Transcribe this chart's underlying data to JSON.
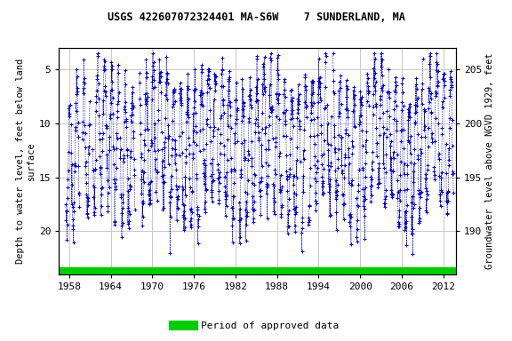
{
  "title": "USGS 422607072324401 MA-S6W    7 SUNDERLAND, MA",
  "ylabel_left": "Depth to water level, feet below land\nsurface",
  "ylabel_right": "Groundwater level above NGVD 1929, feet",
  "ylim_left": [
    24,
    3
  ],
  "ylim_right": [
    186,
    207
  ],
  "xlim": [
    1956.5,
    2013.8
  ],
  "xticks": [
    1958,
    1964,
    1970,
    1976,
    1982,
    1988,
    1994,
    2000,
    2006,
    2012
  ],
  "yticks_left": [
    5,
    10,
    15,
    20
  ],
  "yticks_right": [
    205,
    200,
    195,
    190
  ],
  "data_color": "#0000cc",
  "green_bar_color": "#00cc00",
  "background_color": "#ffffff",
  "grid_color": "#c8c8c8",
  "title_fontsize": 8.5,
  "axis_label_fontsize": 7.5,
  "tick_fontsize": 8,
  "legend_label": "Period of approved data",
  "seed": 12345
}
